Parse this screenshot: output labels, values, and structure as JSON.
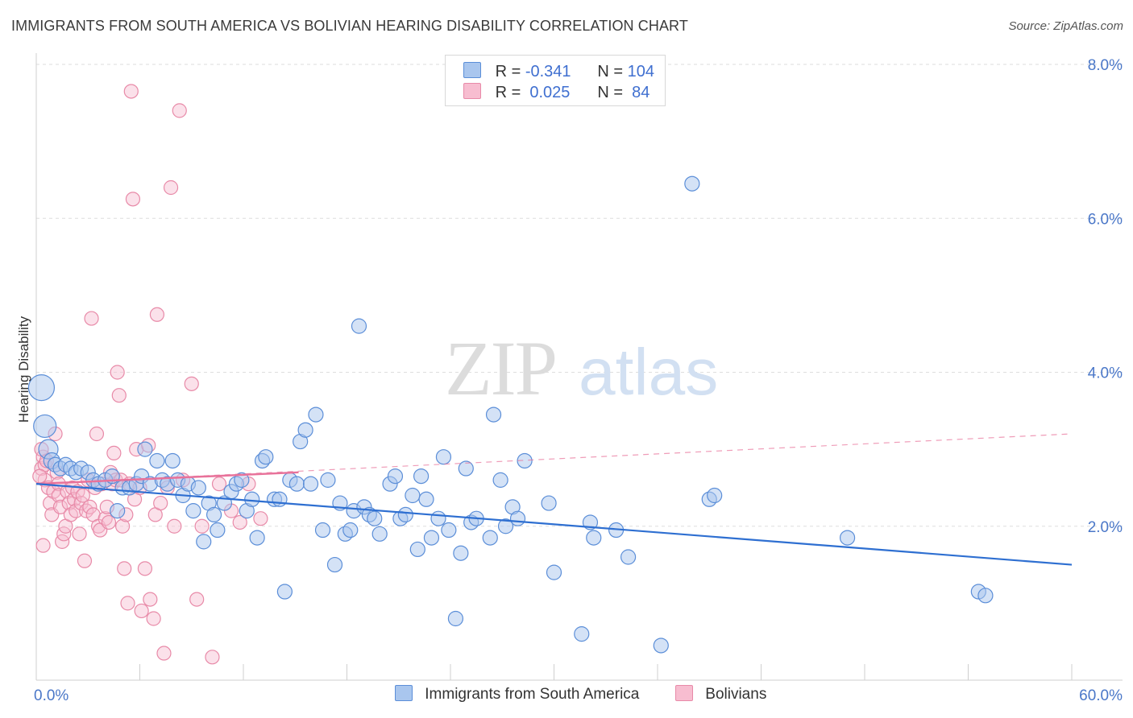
{
  "title": "IMMIGRANTS FROM SOUTH AMERICA VS BOLIVIAN HEARING DISABILITY CORRELATION CHART",
  "source": "Source: ZipAtlas.com",
  "watermark": {
    "zip": "ZIP",
    "atlas": "atlas"
  },
  "legend": {
    "rows": [
      {
        "r_label": "R =",
        "r_value": "-0.341",
        "n_label": "N =",
        "n_value": "104"
      },
      {
        "r_label": "R =",
        "r_value": " 0.025",
        "n_label": "N =",
        "n_value": " 84"
      }
    ]
  },
  "colors": {
    "blue_fill": "#a9c6ee",
    "blue_stroke": "#5b8ed8",
    "blue_line": "#2e6fd1",
    "pink_fill": "#f7bdd0",
    "pink_stroke": "#e88aa8",
    "pink_line": "#e8729a",
    "grid": "#dedede",
    "tick": "#4a77c8"
  },
  "chart_data": {
    "type": "scatter",
    "title": "IMMIGRANTS FROM SOUTH AMERICA VS BOLIVIAN HEARING DISABILITY CORRELATION CHART",
    "xlabel": "",
    "ylabel": "Hearing Disability",
    "xlim": [
      0,
      60
    ],
    "ylim": [
      0,
      8.0
    ],
    "x_tick_labels": [
      "0.0%",
      "60.0%"
    ],
    "y_tick_labels": [
      "2.0%",
      "4.0%",
      "6.0%",
      "8.0%"
    ],
    "y_ticks": [
      2,
      4,
      6,
      8
    ],
    "grid": true,
    "legend_position": "bottom",
    "series": [
      {
        "name": "Immigrants from South America",
        "color": "#5b8ed8",
        "trend": {
          "x": [
            0,
            60
          ],
          "y": [
            2.55,
            1.5
          ]
        },
        "points": [
          {
            "x": 0.3,
            "y": 3.8,
            "s": 16
          },
          {
            "x": 0.5,
            "y": 3.3,
            "s": 14
          },
          {
            "x": 0.7,
            "y": 3.0,
            "s": 12
          },
          {
            "x": 0.9,
            "y": 2.85,
            "s": 10
          },
          {
            "x": 1.1,
            "y": 2.8,
            "s": 9
          },
          {
            "x": 1.4,
            "y": 2.75,
            "s": 9
          },
          {
            "x": 1.7,
            "y": 2.8,
            "s": 9
          },
          {
            "x": 2.0,
            "y": 2.75,
            "s": 9
          },
          {
            "x": 2.3,
            "y": 2.7,
            "s": 9
          },
          {
            "x": 2.6,
            "y": 2.75,
            "s": 9
          },
          {
            "x": 3.0,
            "y": 2.7,
            "s": 9
          },
          {
            "x": 3.3,
            "y": 2.6,
            "s": 9
          },
          {
            "x": 3.6,
            "y": 2.55,
            "s": 9
          },
          {
            "x": 4.0,
            "y": 2.6,
            "s": 9
          },
          {
            "x": 4.4,
            "y": 2.65,
            "s": 9
          },
          {
            "x": 4.7,
            "y": 2.2,
            "s": 9
          },
          {
            "x": 5.0,
            "y": 2.5,
            "s": 9
          },
          {
            "x": 5.4,
            "y": 2.5,
            "s": 9
          },
          {
            "x": 5.8,
            "y": 2.55,
            "s": 9
          },
          {
            "x": 6.1,
            "y": 2.65,
            "s": 9
          },
          {
            "x": 6.3,
            "y": 3.0,
            "s": 9
          },
          {
            "x": 6.6,
            "y": 2.55,
            "s": 9
          },
          {
            "x": 7.0,
            "y": 2.85,
            "s": 9
          },
          {
            "x": 7.3,
            "y": 2.6,
            "s": 9
          },
          {
            "x": 7.6,
            "y": 2.55,
            "s": 9
          },
          {
            "x": 7.9,
            "y": 2.85,
            "s": 9
          },
          {
            "x": 8.2,
            "y": 2.6,
            "s": 9
          },
          {
            "x": 8.5,
            "y": 2.4,
            "s": 9
          },
          {
            "x": 8.8,
            "y": 2.55,
            "s": 9
          },
          {
            "x": 9.1,
            "y": 2.2,
            "s": 9
          },
          {
            "x": 9.4,
            "y": 2.5,
            "s": 9
          },
          {
            "x": 9.7,
            "y": 1.8,
            "s": 9
          },
          {
            "x": 10.0,
            "y": 2.3,
            "s": 9
          },
          {
            "x": 10.3,
            "y": 2.15,
            "s": 9
          },
          {
            "x": 10.5,
            "y": 1.95,
            "s": 9
          },
          {
            "x": 10.9,
            "y": 2.3,
            "s": 9
          },
          {
            "x": 11.3,
            "y": 2.45,
            "s": 9
          },
          {
            "x": 11.6,
            "y": 2.55,
            "s": 9
          },
          {
            "x": 11.9,
            "y": 2.6,
            "s": 9
          },
          {
            "x": 12.2,
            "y": 2.2,
            "s": 9
          },
          {
            "x": 12.5,
            "y": 2.35,
            "s": 9
          },
          {
            "x": 12.8,
            "y": 1.85,
            "s": 9
          },
          {
            "x": 13.1,
            "y": 2.85,
            "s": 9
          },
          {
            "x": 13.3,
            "y": 2.9,
            "s": 9
          },
          {
            "x": 13.8,
            "y": 2.35,
            "s": 9
          },
          {
            "x": 14.1,
            "y": 2.35,
            "s": 9
          },
          {
            "x": 14.4,
            "y": 1.15,
            "s": 9
          },
          {
            "x": 14.7,
            "y": 2.6,
            "s": 9
          },
          {
            "x": 15.1,
            "y": 2.55,
            "s": 9
          },
          {
            "x": 15.3,
            "y": 3.1,
            "s": 9
          },
          {
            "x": 15.6,
            "y": 3.25,
            "s": 9
          },
          {
            "x": 15.9,
            "y": 2.55,
            "s": 9
          },
          {
            "x": 16.2,
            "y": 3.45,
            "s": 9
          },
          {
            "x": 16.6,
            "y": 1.95,
            "s": 9
          },
          {
            "x": 16.9,
            "y": 2.6,
            "s": 9
          },
          {
            "x": 17.3,
            "y": 1.5,
            "s": 9
          },
          {
            "x": 17.6,
            "y": 2.3,
            "s": 9
          },
          {
            "x": 17.9,
            "y": 1.9,
            "s": 9
          },
          {
            "x": 18.2,
            "y": 1.95,
            "s": 9
          },
          {
            "x": 18.4,
            "y": 2.2,
            "s": 9
          },
          {
            "x": 18.7,
            "y": 4.6,
            "s": 9
          },
          {
            "x": 19.0,
            "y": 2.25,
            "s": 9
          },
          {
            "x": 19.3,
            "y": 2.15,
            "s": 9
          },
          {
            "x": 19.6,
            "y": 2.1,
            "s": 9
          },
          {
            "x": 19.9,
            "y": 1.9,
            "s": 9
          },
          {
            "x": 20.5,
            "y": 2.55,
            "s": 9
          },
          {
            "x": 20.8,
            "y": 2.65,
            "s": 9
          },
          {
            "x": 21.1,
            "y": 2.1,
            "s": 9
          },
          {
            "x": 21.4,
            "y": 2.15,
            "s": 9
          },
          {
            "x": 21.8,
            "y": 2.4,
            "s": 9
          },
          {
            "x": 22.1,
            "y": 1.7,
            "s": 9
          },
          {
            "x": 22.3,
            "y": 2.65,
            "s": 9
          },
          {
            "x": 22.6,
            "y": 2.35,
            "s": 9
          },
          {
            "x": 22.9,
            "y": 1.85,
            "s": 9
          },
          {
            "x": 23.3,
            "y": 2.1,
            "s": 9
          },
          {
            "x": 23.6,
            "y": 2.9,
            "s": 9
          },
          {
            "x": 23.9,
            "y": 1.95,
            "s": 9
          },
          {
            "x": 24.3,
            "y": 0.8,
            "s": 9
          },
          {
            "x": 24.6,
            "y": 1.65,
            "s": 9
          },
          {
            "x": 24.9,
            "y": 2.75,
            "s": 9
          },
          {
            "x": 25.2,
            "y": 2.05,
            "s": 9
          },
          {
            "x": 25.5,
            "y": 2.1,
            "s": 9
          },
          {
            "x": 26.3,
            "y": 1.85,
            "s": 9
          },
          {
            "x": 26.5,
            "y": 3.45,
            "s": 9
          },
          {
            "x": 26.9,
            "y": 2.6,
            "s": 9
          },
          {
            "x": 27.2,
            "y": 2.0,
            "s": 9
          },
          {
            "x": 27.6,
            "y": 2.25,
            "s": 9
          },
          {
            "x": 27.9,
            "y": 2.1,
            "s": 9
          },
          {
            "x": 28.3,
            "y": 2.85,
            "s": 9
          },
          {
            "x": 29.7,
            "y": 2.3,
            "s": 9
          },
          {
            "x": 30.0,
            "y": 1.4,
            "s": 9
          },
          {
            "x": 31.6,
            "y": 0.6,
            "s": 9
          },
          {
            "x": 32.1,
            "y": 2.05,
            "s": 9
          },
          {
            "x": 32.3,
            "y": 1.85,
            "s": 9
          },
          {
            "x": 33.6,
            "y": 1.95,
            "s": 9
          },
          {
            "x": 34.3,
            "y": 1.6,
            "s": 9
          },
          {
            "x": 36.2,
            "y": 0.45,
            "s": 9
          },
          {
            "x": 38.0,
            "y": 6.45,
            "s": 9
          },
          {
            "x": 39.0,
            "y": 2.35,
            "s": 9
          },
          {
            "x": 39.3,
            "y": 2.4,
            "s": 9
          },
          {
            "x": 47.0,
            "y": 1.85,
            "s": 9
          },
          {
            "x": 54.6,
            "y": 1.15,
            "s": 9
          },
          {
            "x": 55.0,
            "y": 1.1,
            "s": 9
          }
        ]
      },
      {
        "name": "Bolivians",
        "color": "#e88aa8",
        "trend": {
          "x": [
            0,
            15.2
          ],
          "y": [
            2.55,
            2.7
          ]
        },
        "trend_extended": {
          "x": [
            0,
            60
          ],
          "y": [
            2.55,
            3.2
          ]
        },
        "points": [
          {
            "x": 0.3,
            "y": 2.75
          },
          {
            "x": 0.4,
            "y": 2.9
          },
          {
            "x": 0.5,
            "y": 2.8
          },
          {
            "x": 0.5,
            "y": 2.6
          },
          {
            "x": 0.6,
            "y": 2.85
          },
          {
            "x": 0.7,
            "y": 2.5
          },
          {
            "x": 0.8,
            "y": 2.3
          },
          {
            "x": 0.9,
            "y": 2.15
          },
          {
            "x": 1.0,
            "y": 2.45
          },
          {
            "x": 1.1,
            "y": 3.2
          },
          {
            "x": 1.2,
            "y": 2.7
          },
          {
            "x": 1.3,
            "y": 2.55
          },
          {
            "x": 1.3,
            "y": 2.4
          },
          {
            "x": 1.4,
            "y": 2.25
          },
          {
            "x": 1.5,
            "y": 1.8
          },
          {
            "x": 1.6,
            "y": 1.9
          },
          {
            "x": 1.7,
            "y": 2.0
          },
          {
            "x": 1.8,
            "y": 2.45
          },
          {
            "x": 1.9,
            "y": 2.3
          },
          {
            "x": 2.0,
            "y": 2.15
          },
          {
            "x": 2.1,
            "y": 2.5
          },
          {
            "x": 2.2,
            "y": 2.35
          },
          {
            "x": 2.3,
            "y": 2.2
          },
          {
            "x": 2.4,
            "y": 2.45
          },
          {
            "x": 2.5,
            "y": 1.9
          },
          {
            "x": 2.6,
            "y": 2.3
          },
          {
            "x": 2.7,
            "y": 2.4
          },
          {
            "x": 2.8,
            "y": 1.55
          },
          {
            "x": 2.9,
            "y": 2.2
          },
          {
            "x": 3.0,
            "y": 2.6
          },
          {
            "x": 3.1,
            "y": 2.25
          },
          {
            "x": 3.2,
            "y": 4.7
          },
          {
            "x": 3.3,
            "y": 2.15
          },
          {
            "x": 3.4,
            "y": 2.5
          },
          {
            "x": 3.5,
            "y": 3.2
          },
          {
            "x": 3.6,
            "y": 2.0
          },
          {
            "x": 3.7,
            "y": 1.95
          },
          {
            "x": 3.8,
            "y": 2.55
          },
          {
            "x": 4.0,
            "y": 2.1
          },
          {
            "x": 4.1,
            "y": 2.25
          },
          {
            "x": 4.2,
            "y": 2.05
          },
          {
            "x": 4.3,
            "y": 2.7
          },
          {
            "x": 4.4,
            "y": 2.55
          },
          {
            "x": 4.5,
            "y": 2.95
          },
          {
            "x": 4.6,
            "y": 2.6
          },
          {
            "x": 4.7,
            "y": 4.0
          },
          {
            "x": 4.8,
            "y": 3.7
          },
          {
            "x": 4.9,
            "y": 2.6
          },
          {
            "x": 5.0,
            "y": 2.0
          },
          {
            "x": 5.1,
            "y": 1.45
          },
          {
            "x": 5.2,
            "y": 2.15
          },
          {
            "x": 5.3,
            "y": 1.0
          },
          {
            "x": 5.4,
            "y": 2.55
          },
          {
            "x": 5.5,
            "y": 7.65
          },
          {
            "x": 5.6,
            "y": 6.25
          },
          {
            "x": 5.7,
            "y": 2.35
          },
          {
            "x": 5.8,
            "y": 3.0
          },
          {
            "x": 6.0,
            "y": 2.5
          },
          {
            "x": 6.1,
            "y": 0.9
          },
          {
            "x": 6.3,
            "y": 1.45
          },
          {
            "x": 6.5,
            "y": 3.05
          },
          {
            "x": 6.6,
            "y": 1.05
          },
          {
            "x": 6.8,
            "y": 0.8
          },
          {
            "x": 6.9,
            "y": 2.15
          },
          {
            "x": 7.0,
            "y": 4.75
          },
          {
            "x": 7.2,
            "y": 2.3
          },
          {
            "x": 7.4,
            "y": 0.35
          },
          {
            "x": 7.6,
            "y": 2.5
          },
          {
            "x": 7.8,
            "y": 6.4
          },
          {
            "x": 8.0,
            "y": 2.0
          },
          {
            "x": 8.3,
            "y": 7.4
          },
          {
            "x": 8.5,
            "y": 2.6
          },
          {
            "x": 9.0,
            "y": 3.85
          },
          {
            "x": 9.3,
            "y": 1.05
          },
          {
            "x": 9.6,
            "y": 2.0
          },
          {
            "x": 10.2,
            "y": 0.3
          },
          {
            "x": 10.6,
            "y": 2.55
          },
          {
            "x": 11.3,
            "y": 2.2
          },
          {
            "x": 11.8,
            "y": 2.05
          },
          {
            "x": 12.3,
            "y": 2.55
          },
          {
            "x": 13.0,
            "y": 2.1
          },
          {
            "x": 0.2,
            "y": 2.65
          },
          {
            "x": 0.3,
            "y": 3.0
          },
          {
            "x": 0.4,
            "y": 1.75
          }
        ]
      }
    ]
  }
}
